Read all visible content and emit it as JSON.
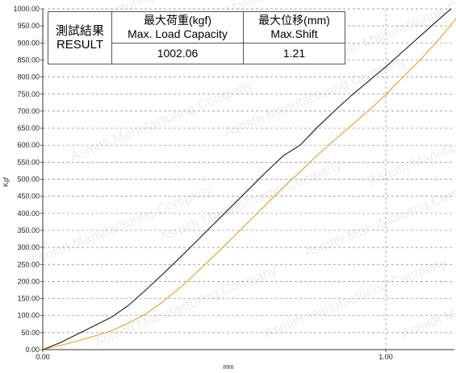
{
  "result_table": {
    "label_line1": "測試結果",
    "label_line2": "RESULT",
    "max_load_header_line1": "最大荷重(kgf)",
    "max_load_header_line2": "Max. Load Capacity",
    "max_shift_header_line1": "最大位移(mm)",
    "max_shift_header_line2": "Max.Shift",
    "max_load_value": "1002.06",
    "max_shift_value": "1.21"
  },
  "watermark_text": "Asmith Manufacturing Company",
  "colors": {
    "series_black": "#1a1a1a",
    "series_orange": "#f39a1e",
    "grid": "#888888"
  },
  "chart_data": {
    "type": "line",
    "title": "",
    "xlabel": "mm",
    "ylabel": "Kgf",
    "xlim": [
      0,
      1.2
    ],
    "ylim": [
      0,
      1000
    ],
    "x_ticks": [
      0,
      1.0
    ],
    "x_tick_labels": [
      "0.00",
      "1.00"
    ],
    "y_ticks": [
      0,
      50,
      100,
      150,
      200,
      250,
      300,
      350,
      400,
      450,
      500,
      550,
      600,
      650,
      700,
      750,
      800,
      850,
      900,
      950,
      1000
    ],
    "y_tick_labels": [
      "0.00",
      "50.00",
      "100.00",
      "150.00",
      "200.00",
      "250.00",
      "300.00",
      "350.00",
      "400.00",
      "450.00",
      "500.00",
      "550.00",
      "600.00",
      "650.00",
      "700.00",
      "750.00",
      "800.00",
      "850.00",
      "900.00",
      "950.00",
      "1000.00"
    ],
    "grid": true,
    "series": [
      {
        "color": "#1a1a1a",
        "points": [
          [
            0,
            0
          ],
          [
            0.05,
            20
          ],
          [
            0.1,
            45
          ],
          [
            0.15,
            70
          ],
          [
            0.2,
            95
          ],
          [
            0.25,
            130
          ],
          [
            0.3,
            175
          ],
          [
            0.35,
            222
          ],
          [
            0.4,
            270
          ],
          [
            0.45,
            320
          ],
          [
            0.5,
            370
          ],
          [
            0.55,
            420
          ],
          [
            0.6,
            470
          ],
          [
            0.65,
            520
          ],
          [
            0.7,
            568
          ],
          [
            0.75,
            600
          ],
          [
            0.8,
            652
          ],
          [
            0.85,
            700
          ],
          [
            0.9,
            746
          ],
          [
            0.95,
            788
          ],
          [
            0.97,
            805
          ],
          [
            1.0,
            830
          ],
          [
            1.05,
            875
          ],
          [
            1.1,
            920
          ],
          [
            1.15,
            965
          ],
          [
            1.19,
            1000
          ]
        ]
      },
      {
        "color": "#f39a1e",
        "points": [
          [
            0,
            0
          ],
          [
            0.05,
            12
          ],
          [
            0.1,
            25
          ],
          [
            0.15,
            40
          ],
          [
            0.2,
            55
          ],
          [
            0.25,
            78
          ],
          [
            0.3,
            105
          ],
          [
            0.35,
            140
          ],
          [
            0.4,
            182
          ],
          [
            0.45,
            228
          ],
          [
            0.5,
            276
          ],
          [
            0.55,
            325
          ],
          [
            0.6,
            375
          ],
          [
            0.65,
            425
          ],
          [
            0.7,
            475
          ],
          [
            0.75,
            522
          ],
          [
            0.8,
            570
          ],
          [
            0.85,
            615
          ],
          [
            0.9,
            658
          ],
          [
            0.95,
            702
          ],
          [
            1.0,
            748
          ],
          [
            1.05,
            800
          ],
          [
            1.1,
            850
          ],
          [
            1.15,
            905
          ],
          [
            1.2,
            965
          ],
          [
            1.21,
            980
          ]
        ]
      }
    ]
  }
}
